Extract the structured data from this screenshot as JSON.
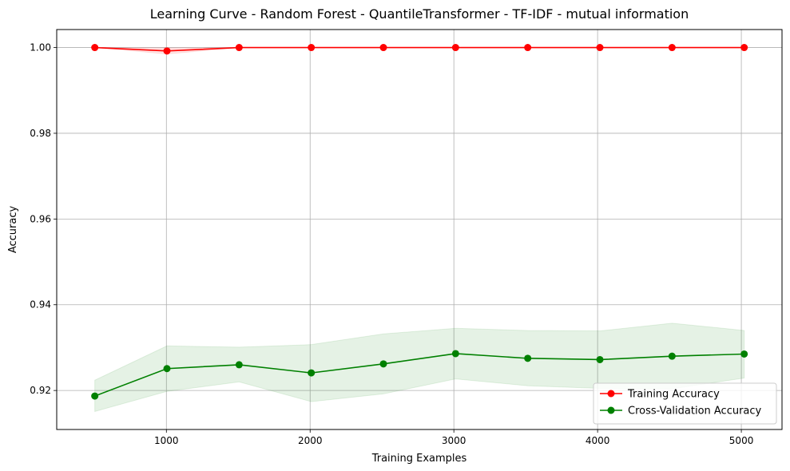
{
  "chart_data": {
    "type": "line",
    "title": "Learning Curve - Random Forest - QuantileTransformer - TF-IDF - mutual information",
    "xlabel": "Training Examples",
    "ylabel": "Accuracy",
    "xlim": [
      237,
      5283
    ],
    "ylim": [
      0.9109,
      1.0042
    ],
    "xticks": [
      1000,
      2000,
      3000,
      4000,
      5000
    ],
    "yticks": [
      0.92,
      0.94,
      0.96,
      0.98,
      1.0
    ],
    "xtick_labels": [
      "1000",
      "2000",
      "3000",
      "4000",
      "5000"
    ],
    "ytick_labels": [
      "0.92",
      "0.94",
      "0.96",
      "0.98",
      "1.00"
    ],
    "grid": true,
    "legend_position": "lower-right",
    "x": [
      502,
      1004,
      1506,
      2008,
      2510,
      3012,
      3514,
      4016,
      4518,
      5020
    ],
    "series": [
      {
        "name": "Training Accuracy",
        "color": "#ff0000",
        "values": [
          1.0,
          0.9992,
          1.0,
          1.0,
          1.0,
          1.0,
          1.0,
          1.0,
          1.0,
          1.0
        ],
        "band_low": [
          1.0,
          0.9985,
          1.0,
          1.0,
          1.0,
          1.0,
          1.0,
          1.0,
          1.0,
          1.0
        ],
        "band_high": [
          1.0,
          0.9999,
          1.0,
          1.0,
          1.0,
          1.0,
          1.0,
          1.0,
          1.0,
          1.0
        ]
      },
      {
        "name": "Cross-Validation Accuracy",
        "color": "#008000",
        "values": [
          0.9187,
          0.9251,
          0.926,
          0.9241,
          0.9262,
          0.9286,
          0.9275,
          0.9272,
          0.928,
          0.9285
        ],
        "band_low": [
          0.9151,
          0.9198,
          0.922,
          0.9174,
          0.9192,
          0.9227,
          0.9211,
          0.9205,
          0.9204,
          0.9229
        ],
        "band_high": [
          0.9224,
          0.9304,
          0.9301,
          0.9307,
          0.9332,
          0.9345,
          0.934,
          0.9339,
          0.9357,
          0.934
        ]
      }
    ]
  }
}
